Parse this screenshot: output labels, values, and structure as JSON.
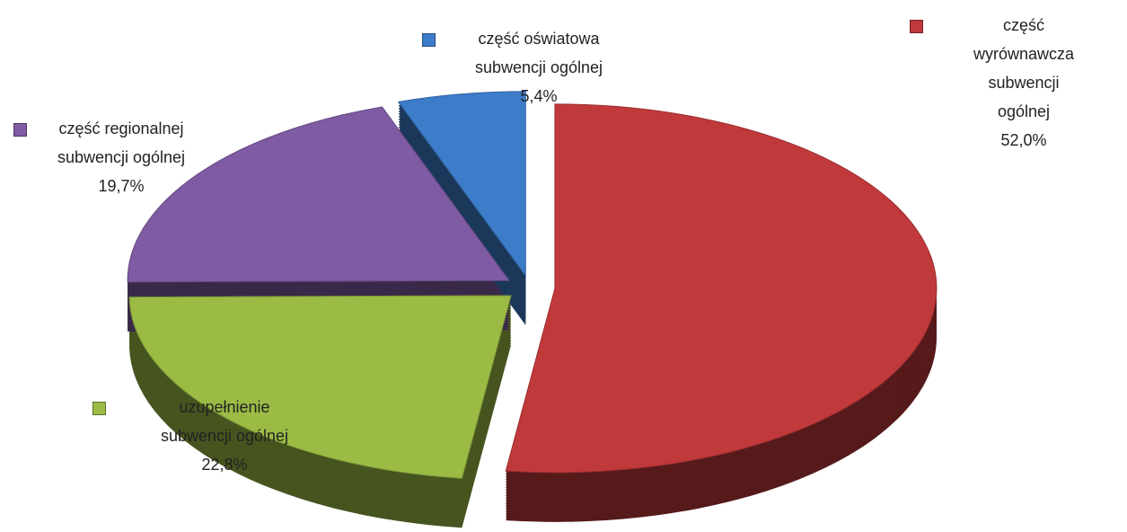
{
  "chart_data": {
    "type": "pie",
    "categories": [
      "część wyrównawcza\nsubwencji ogólnej",
      "uzupełnienie\nsubwencji ogólnej",
      "część regionalnej\nsubwencji ogólnej",
      "część oświatowa\nsubwencji ogólnej"
    ],
    "values": [
      52.0,
      22.8,
      19.7,
      5.4
    ],
    "value_labels": [
      "52,0%",
      "22,8%",
      "19,7%",
      "5,4%"
    ],
    "colors": [
      "#c0393b",
      "#9bbb45",
      "#7e5ba3",
      "#3d7cc9"
    ]
  }
}
